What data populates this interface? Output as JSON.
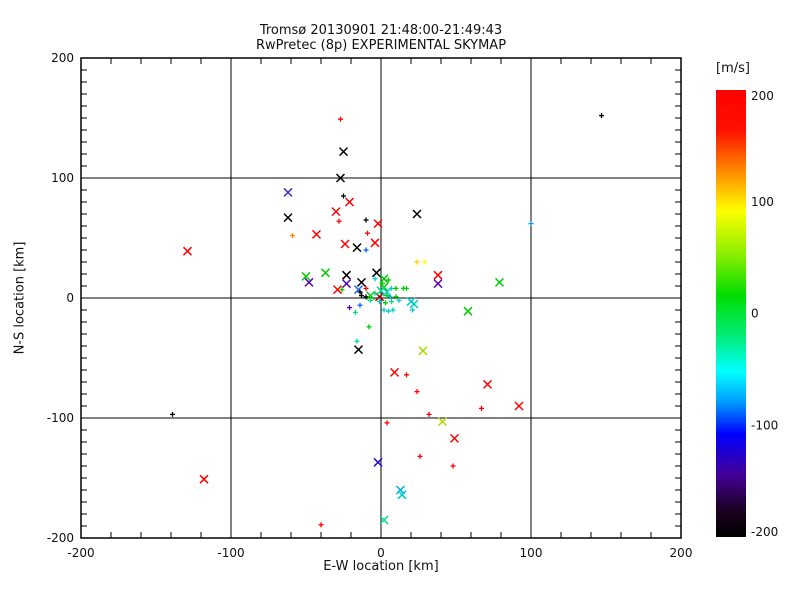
{
  "chart_data": {
    "type": "scatter",
    "title": "Tromsø 20130901 21:48:00-21:49:43",
    "subtitle": "RwPretec (8p) EXPERIMENTAL SKYMAP",
    "xlabel": "E-W location [km]",
    "ylabel": "N-S location [km]",
    "xlim": [
      -200,
      200
    ],
    "ylim": [
      -200,
      200
    ],
    "xticks": [
      -200,
      -100,
      0,
      100,
      200
    ],
    "yticks": [
      200,
      100,
      0,
      -100,
      -200
    ],
    "grid_lines": [
      -100,
      0,
      100
    ],
    "minor_tick_km": {
      "x": 20,
      "y": 10
    },
    "grid": true,
    "axis_color": "#000000",
    "background": "#FFFFFF",
    "points": [
      {
        "x": -27,
        "y": 149,
        "c": "#FF0000",
        "m": "+"
      },
      {
        "x": -25,
        "y": 122,
        "c": "#000000",
        "m": "x"
      },
      {
        "x": -27,
        "y": 100,
        "c": "#000000",
        "m": "x"
      },
      {
        "x": -62,
        "y": 88,
        "c": "#4422CC",
        "m": "x"
      },
      {
        "x": -25,
        "y": 85,
        "c": "#000000",
        "m": "+"
      },
      {
        "x": -21,
        "y": 80,
        "c": "#FF0000",
        "m": "x"
      },
      {
        "x": -30,
        "y": 72,
        "c": "#FF0000",
        "m": "x"
      },
      {
        "x": -62,
        "y": 67,
        "c": "#000000",
        "m": "x"
      },
      {
        "x": -28,
        "y": 64,
        "c": "#FF0000",
        "m": "+"
      },
      {
        "x": -10,
        "y": 65,
        "c": "#000000",
        "m": "+"
      },
      {
        "x": -2,
        "y": 62,
        "c": "#FF0000",
        "m": "x"
      },
      {
        "x": 24,
        "y": 70,
        "c": "#000000",
        "m": "x"
      },
      {
        "x": 147,
        "y": 152,
        "c": "#000000",
        "m": "+"
      },
      {
        "x": -59,
        "y": 52,
        "c": "#FF8800",
        "m": "+"
      },
      {
        "x": -43,
        "y": 53,
        "c": "#FF0000",
        "m": "x"
      },
      {
        "x": -9,
        "y": 54,
        "c": "#FF0000",
        "m": "+"
      },
      {
        "x": -24,
        "y": 45,
        "c": "#FF0000",
        "m": "x"
      },
      {
        "x": -16,
        "y": 42,
        "c": "#000000",
        "m": "x"
      },
      {
        "x": -4,
        "y": 46,
        "c": "#FF0000",
        "m": "x"
      },
      {
        "x": -10,
        "y": 40,
        "c": "#0066FF",
        "m": "+"
      },
      {
        "x": -129,
        "y": 39,
        "c": "#FF0000",
        "m": "x"
      },
      {
        "x": 100,
        "y": 62,
        "c": "#0099FF",
        "m": "+"
      },
      {
        "x": -50,
        "y": 18,
        "c": "#00CC00",
        "m": "x"
      },
      {
        "x": -37,
        "y": 21,
        "c": "#00CC00",
        "m": "x"
      },
      {
        "x": -48,
        "y": 13,
        "c": "#5500AA",
        "m": "x"
      },
      {
        "x": -23,
        "y": 19,
        "c": "#000000",
        "m": "x"
      },
      {
        "x": -23,
        "y": 12,
        "c": "#5500AA",
        "m": "x"
      },
      {
        "x": -29,
        "y": 7,
        "c": "#FF0000",
        "m": "x"
      },
      {
        "x": -26,
        "y": 7,
        "c": "#00CC00",
        "m": "+"
      },
      {
        "x": 24,
        "y": 30,
        "c": "#FFCC00",
        "m": "+"
      },
      {
        "x": 29,
        "y": 30,
        "c": "#FFFF00",
        "m": "+"
      },
      {
        "x": 38,
        "y": 19,
        "c": "#FF0000",
        "m": "x"
      },
      {
        "x": 38,
        "y": 12,
        "c": "#5500AA",
        "m": "x"
      },
      {
        "x": 79,
        "y": 13,
        "c": "#00CC00",
        "m": "x"
      },
      {
        "x": 17,
        "y": 8,
        "c": "#00CC00",
        "m": "+"
      },
      {
        "x": 58,
        "y": -11,
        "c": "#00CC00",
        "m": "x"
      },
      {
        "x": -3,
        "y": 21,
        "c": "#000000",
        "m": "x"
      },
      {
        "x": -4,
        "y": 16,
        "c": "#00CCCC",
        "m": "+"
      },
      {
        "x": 2,
        "y": 16,
        "c": "#00CC00",
        "m": "x"
      },
      {
        "x": 5,
        "y": 15,
        "c": "#00CC00",
        "m": "+"
      },
      {
        "x": -13,
        "y": 13,
        "c": "#000000",
        "m": "x"
      },
      {
        "x": 1,
        "y": 12,
        "c": "#00CC00",
        "m": "+"
      },
      {
        "x": -15,
        "y": 7,
        "c": "#2266FF",
        "m": "x"
      },
      {
        "x": -10,
        "y": 8,
        "c": "#FF0000",
        "m": "+"
      },
      {
        "x": 2,
        "y": 9,
        "c": "#00CC00",
        "m": "x"
      },
      {
        "x": 7,
        "y": 8,
        "c": "#00CCCC",
        "m": "+"
      },
      {
        "x": 10,
        "y": 8,
        "c": "#00CC00",
        "m": "+"
      },
      {
        "x": 15,
        "y": 8,
        "c": "#00CC00",
        "m": "+"
      },
      {
        "x": -14,
        "y": 5,
        "c": "#000000",
        "m": "+"
      },
      {
        "x": -13,
        "y": 2,
        "c": "#000000",
        "m": "+"
      },
      {
        "x": -10,
        "y": 1,
        "c": "#000000",
        "m": "+"
      },
      {
        "x": -7,
        "y": 2,
        "c": "#00CC00",
        "m": "x"
      },
      {
        "x": -1,
        "y": 1,
        "c": "#AA0000",
        "m": "x"
      },
      {
        "x": 4,
        "y": 2,
        "c": "#00CC00",
        "m": "+"
      },
      {
        "x": 6,
        "y": 1,
        "c": "#00CCCC",
        "m": "+"
      },
      {
        "x": 10,
        "y": 1,
        "c": "#00CC00",
        "m": "+"
      },
      {
        "x": -4,
        "y": 4,
        "c": "#00DD88",
        "m": "+"
      },
      {
        "x": 0,
        "y": 6,
        "c": "#00DD88",
        "m": "x"
      },
      {
        "x": 4,
        "y": 5,
        "c": "#00CCCC",
        "m": "x"
      },
      {
        "x": -7,
        "y": -2,
        "c": "#00DD88",
        "m": "+"
      },
      {
        "x": -1,
        "y": -3,
        "c": "#00CCCC",
        "m": "+"
      },
      {
        "x": 3,
        "y": -4,
        "c": "#00CC00",
        "m": "+"
      },
      {
        "x": 7,
        "y": -3,
        "c": "#00DD88",
        "m": "+"
      },
      {
        "x": 12,
        "y": -2,
        "c": "#00CCCC",
        "m": "+"
      },
      {
        "x": 20,
        "y": -3,
        "c": "#00CCCC",
        "m": "x"
      },
      {
        "x": 22,
        "y": -5,
        "c": "#00CCCC",
        "m": "x"
      },
      {
        "x": -14,
        "y": -6,
        "c": "#0066FF",
        "m": "+"
      },
      {
        "x": -17,
        "y": -12,
        "c": "#00DD88",
        "m": "+"
      },
      {
        "x": -21,
        "y": -8,
        "c": "#5500AA",
        "m": "+"
      },
      {
        "x": 2,
        "y": -10,
        "c": "#00CCCC",
        "m": "+"
      },
      {
        "x": 5,
        "y": -11,
        "c": "#00CCCC",
        "m": "+"
      },
      {
        "x": 8,
        "y": -10,
        "c": "#00CCCC",
        "m": "+"
      },
      {
        "x": 21,
        "y": -10,
        "c": "#00CCCC",
        "m": "+"
      },
      {
        "x": -8,
        "y": -24,
        "c": "#00CC00",
        "m": "+"
      },
      {
        "x": -16,
        "y": -36,
        "c": "#00DD88",
        "m": "+"
      },
      {
        "x": -15,
        "y": -43,
        "c": "#000000",
        "m": "x"
      },
      {
        "x": 28,
        "y": -44,
        "c": "#AADD00",
        "m": "x"
      },
      {
        "x": 9,
        "y": -62,
        "c": "#FF0000",
        "m": "x"
      },
      {
        "x": 17,
        "y": -64,
        "c": "#FF0000",
        "m": "+"
      },
      {
        "x": 24,
        "y": -78,
        "c": "#FF0000",
        "m": "+"
      },
      {
        "x": 71,
        "y": -72,
        "c": "#FF0000",
        "m": "x"
      },
      {
        "x": 67,
        "y": -92,
        "c": "#FF0000",
        "m": "+"
      },
      {
        "x": 92,
        "y": -90,
        "c": "#FF0000",
        "m": "x"
      },
      {
        "x": 32,
        "y": -97,
        "c": "#FF0000",
        "m": "+"
      },
      {
        "x": 4,
        "y": -104,
        "c": "#FF0000",
        "m": "+"
      },
      {
        "x": 41,
        "y": -103,
        "c": "#AADD00",
        "m": "x"
      },
      {
        "x": 49,
        "y": -117,
        "c": "#FF0000",
        "m": "x"
      },
      {
        "x": 26,
        "y": -132,
        "c": "#FF0000",
        "m": "+"
      },
      {
        "x": -2,
        "y": -137,
        "c": "#2200CC",
        "m": "x"
      },
      {
        "x": 48,
        "y": -140,
        "c": "#FF0000",
        "m": "+"
      },
      {
        "x": 13,
        "y": -160,
        "c": "#00AAEE",
        "m": "x"
      },
      {
        "x": 14,
        "y": -164,
        "c": "#00CCCC",
        "m": "x"
      },
      {
        "x": 2,
        "y": -185,
        "c": "#00DD88",
        "m": "x"
      },
      {
        "x": -40,
        "y": -189,
        "c": "#FF0000",
        "m": "+"
      },
      {
        "x": -118,
        "y": -151,
        "c": "#FF0000",
        "m": "x"
      },
      {
        "x": -139,
        "y": -97,
        "c": "#000000",
        "m": "+"
      }
    ],
    "colorbar": {
      "title": "[m/s]",
      "unit": "m/s",
      "min": -200,
      "max": 200,
      "ticks": [
        200,
        100,
        0,
        -100,
        -200
      ],
      "gradient_stops": [
        [
          "0%",
          "#FF0000"
        ],
        [
          "9%",
          "#FF1100"
        ],
        [
          "18%",
          "#FF8800"
        ],
        [
          "27%",
          "#FFFF00"
        ],
        [
          "37%",
          "#88EE00"
        ],
        [
          "46%",
          "#00DD00"
        ],
        [
          "56%",
          "#00EE88"
        ],
        [
          "63%",
          "#00FFFF"
        ],
        [
          "70%",
          "#0099FF"
        ],
        [
          "77%",
          "#0000FF"
        ],
        [
          "86%",
          "#440099"
        ],
        [
          "94%",
          "#1A0022"
        ],
        [
          "100%",
          "#000000"
        ]
      ]
    }
  }
}
